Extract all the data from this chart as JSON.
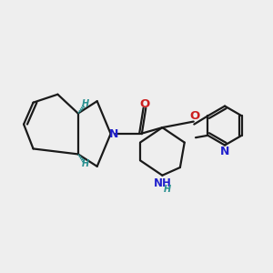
{
  "bg_color": "#eeeeee",
  "bond_color": "#1a1a1a",
  "N_color": "#2020cc",
  "O_color": "#cc2020",
  "H_stereo_color": "#2a9090",
  "line_width": 1.6,
  "fig_size": [
    3.0,
    3.0
  ],
  "dpi": 100,
  "xlim": [
    0,
    10
  ],
  "ylim": [
    0,
    10
  ]
}
